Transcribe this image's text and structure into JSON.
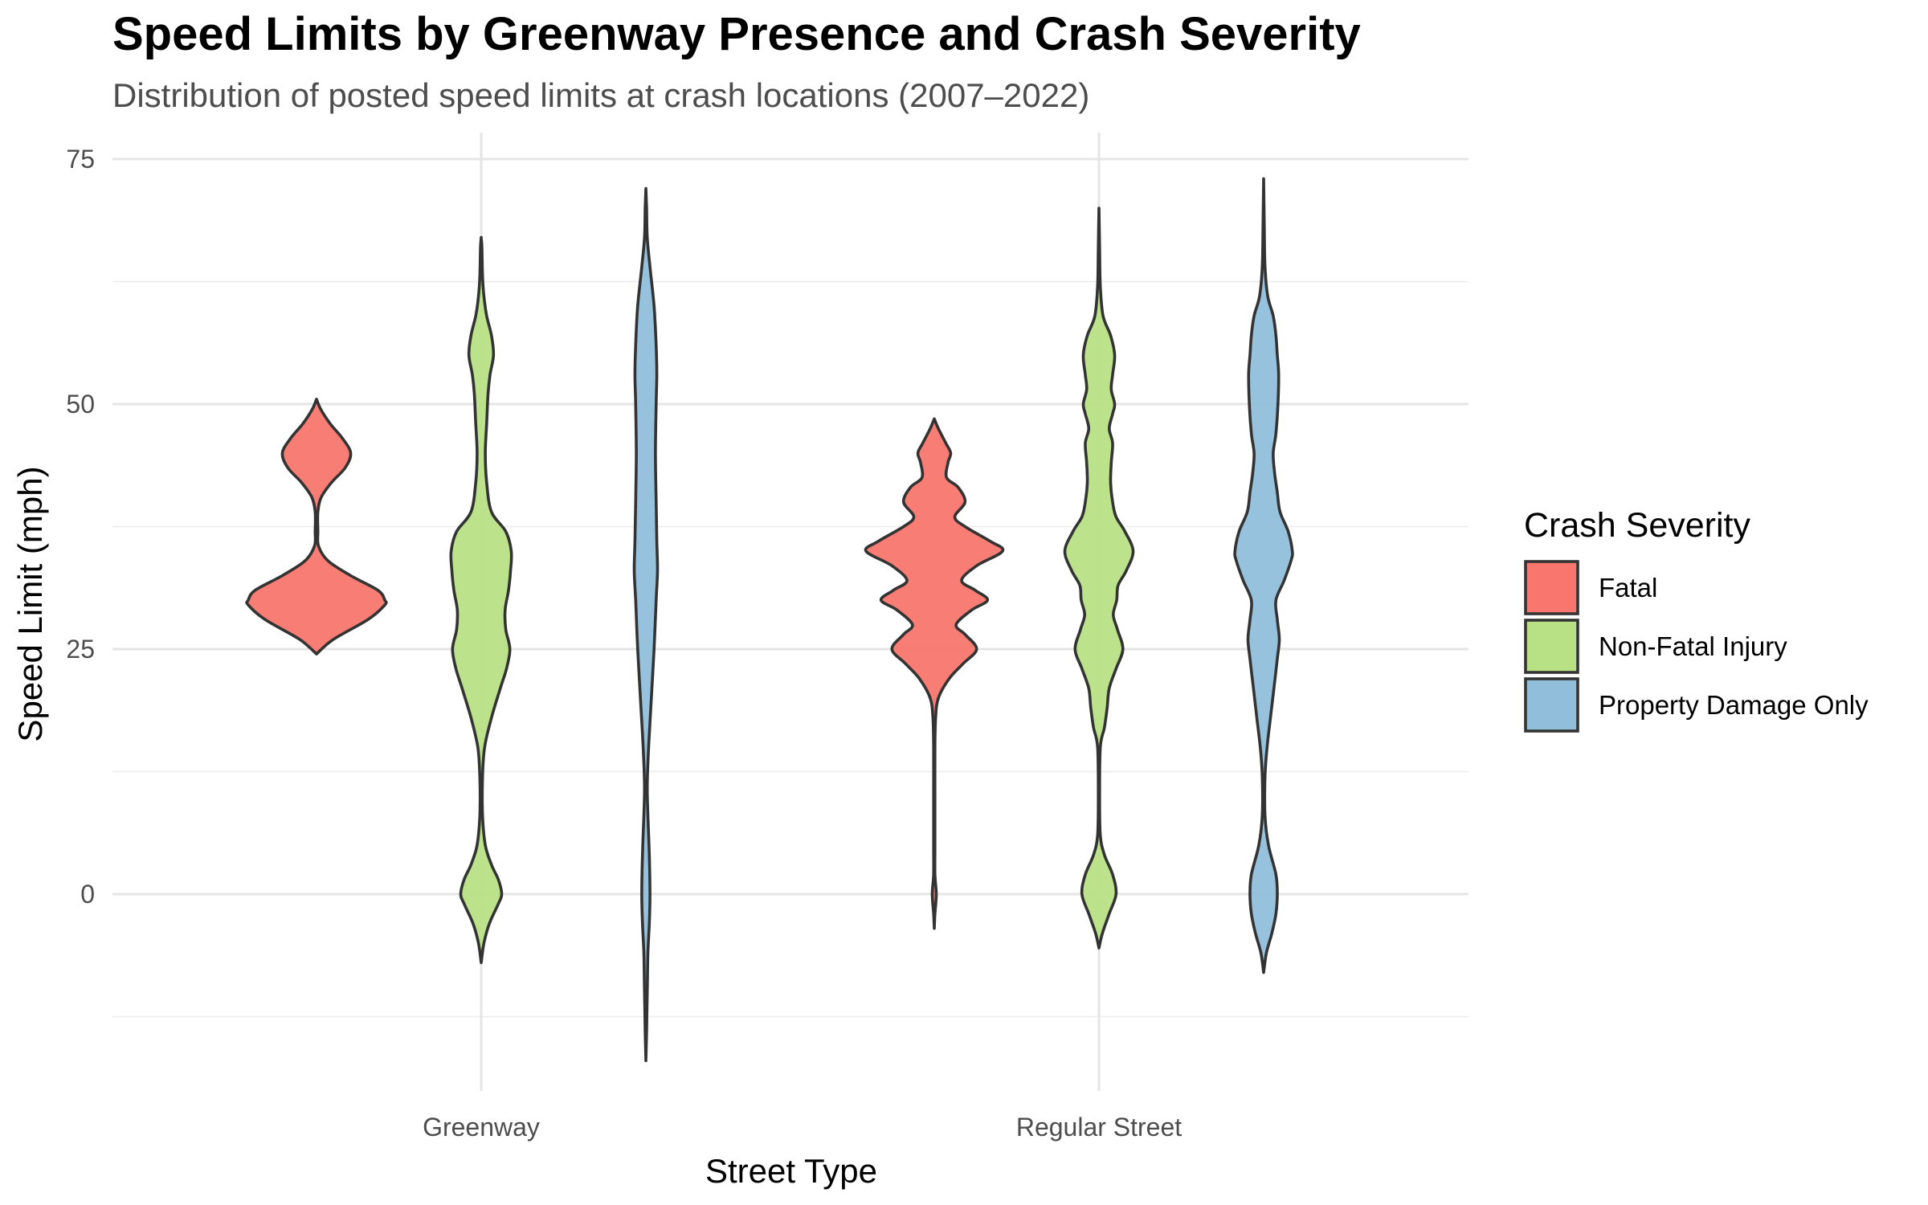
{
  "chart_data": {
    "type": "violin",
    "title": "Speed Limits by Greenway Presence and Crash Severity",
    "subtitle": "Distribution of posted speed limits at crash locations (2007–2022)",
    "xlabel": "Street Type",
    "ylabel": "Speed Limit (mph)",
    "categories": [
      "Greenway",
      "Regular Street"
    ],
    "ylim": [
      -18,
      77
    ],
    "yticks": [
      0,
      25,
      50,
      75
    ],
    "grid": true,
    "legend": {
      "title": "Crash Severity",
      "position": "right"
    },
    "series": [
      {
        "name": "Fatal",
        "color": "#F8766D",
        "violins": [
          {
            "category": "Greenway",
            "min": 24.5,
            "max": 50.5,
            "density": [
              [
                24.5,
                0
              ],
              [
                26,
                0.25
              ],
              [
                28,
                0.75
              ],
              [
                29.5,
                1.0
              ],
              [
                30,
                1.0
              ],
              [
                31,
                0.9
              ],
              [
                32.5,
                0.5
              ],
              [
                34,
                0.17
              ],
              [
                35.5,
                0.03
              ],
              [
                37,
                0.02
              ],
              [
                39,
                0.02
              ],
              [
                40.5,
                0.07
              ],
              [
                42,
                0.22
              ],
              [
                43.5,
                0.42
              ],
              [
                45,
                0.5
              ],
              [
                46.5,
                0.38
              ],
              [
                48,
                0.2
              ],
              [
                49.5,
                0.06
              ],
              [
                50.5,
                0
              ]
            ]
          },
          {
            "category": "Regular Street",
            "min": -3.5,
            "max": 48.5,
            "density": [
              [
                -3.5,
                0
              ],
              [
                -2,
                0.01
              ],
              [
                0,
                0.03
              ],
              [
                2,
                0.01
              ],
              [
                5,
                0.01
              ],
              [
                10,
                0.01
              ],
              [
                15,
                0.01
              ],
              [
                18,
                0.02
              ],
              [
                20,
                0.06
              ],
              [
                22,
                0.22
              ],
              [
                23.5,
                0.42
              ],
              [
                25,
                0.62
              ],
              [
                26.5,
                0.45
              ],
              [
                27.5,
                0.32
              ],
              [
                29,
                0.55
              ],
              [
                30,
                0.78
              ],
              [
                31,
                0.6
              ],
              [
                32,
                0.4
              ],
              [
                33.5,
                0.62
              ],
              [
                35,
                1.0
              ],
              [
                36,
                0.82
              ],
              [
                37.5,
                0.45
              ],
              [
                38.5,
                0.3
              ],
              [
                40,
                0.45
              ],
              [
                41.5,
                0.35
              ],
              [
                42.5,
                0.18
              ],
              [
                44,
                0.2
              ],
              [
                45,
                0.24
              ],
              [
                46,
                0.17
              ],
              [
                47.5,
                0.06
              ],
              [
                48.5,
                0
              ]
            ]
          }
        ]
      },
      {
        "name": "Non-Fatal Injury",
        "color": "#B8E186",
        "violins": [
          {
            "category": "Greenway",
            "min": -7,
            "max": 67,
            "density": [
              [
                -7,
                0
              ],
              [
                -5,
                0.04
              ],
              [
                -3,
                0.12
              ],
              [
                -1,
                0.25
              ],
              [
                0,
                0.3
              ],
              [
                1.5,
                0.25
              ],
              [
                3,
                0.15
              ],
              [
                5,
                0.06
              ],
              [
                8,
                0.02
              ],
              [
                12,
                0.02
              ],
              [
                15,
                0.05
              ],
              [
                18,
                0.15
              ],
              [
                21,
                0.28
              ],
              [
                23,
                0.37
              ],
              [
                25,
                0.42
              ],
              [
                27,
                0.36
              ],
              [
                29,
                0.35
              ],
              [
                31,
                0.4
              ],
              [
                33,
                0.43
              ],
              [
                35,
                0.44
              ],
              [
                37,
                0.36
              ],
              [
                39,
                0.15
              ],
              [
                42,
                0.08
              ],
              [
                45,
                0.06
              ],
              [
                48,
                0.08
              ],
              [
                51,
                0.1
              ],
              [
                53,
                0.13
              ],
              [
                55,
                0.18
              ],
              [
                57,
                0.15
              ],
              [
                59,
                0.08
              ],
              [
                61,
                0.04
              ],
              [
                63,
                0.02
              ],
              [
                66,
                0.01
              ],
              [
                67,
                0
              ]
            ]
          },
          {
            "category": "Regular Street",
            "min": -5.5,
            "max": 70,
            "density": [
              [
                -5.5,
                0
              ],
              [
                -4,
                0.05
              ],
              [
                -2,
                0.15
              ],
              [
                0,
                0.25
              ],
              [
                2,
                0.2
              ],
              [
                4,
                0.08
              ],
              [
                6,
                0.02
              ],
              [
                10,
                0.01
              ],
              [
                15,
                0.02
              ],
              [
                17,
                0.08
              ],
              [
                19,
                0.12
              ],
              [
                21,
                0.15
              ],
              [
                23,
                0.25
              ],
              [
                25,
                0.35
              ],
              [
                27,
                0.27
              ],
              [
                28.5,
                0.21
              ],
              [
                30,
                0.26
              ],
              [
                31.5,
                0.28
              ],
              [
                33,
                0.4
              ],
              [
                35,
                0.5
              ],
              [
                37,
                0.38
              ],
              [
                38.5,
                0.25
              ],
              [
                40,
                0.2
              ],
              [
                42,
                0.17
              ],
              [
                44,
                0.18
              ],
              [
                46,
                0.2
              ],
              [
                47.5,
                0.15
              ],
              [
                49,
                0.2
              ],
              [
                50,
                0.23
              ],
              [
                51.5,
                0.18
              ],
              [
                53,
                0.2
              ],
              [
                55,
                0.23
              ],
              [
                57,
                0.17
              ],
              [
                59,
                0.06
              ],
              [
                62,
                0.02
              ],
              [
                66,
                0.01
              ],
              [
                70,
                0
              ]
            ]
          }
        ]
      },
      {
        "name": "Property Damage Only",
        "color": "#91BFDB",
        "violins": [
          {
            "category": "Greenway",
            "min": -17,
            "max": 72,
            "density": [
              [
                -17,
                0
              ],
              [
                -14,
                0.01
              ],
              [
                -10,
                0.02
              ],
              [
                -6,
                0.03
              ],
              [
                -3,
                0.05
              ],
              [
                0,
                0.06
              ],
              [
                4,
                0.05
              ],
              [
                8,
                0.03
              ],
              [
                11,
                0.02
              ],
              [
                15,
                0.04
              ],
              [
                20,
                0.08
              ],
              [
                25,
                0.12
              ],
              [
                30,
                0.15
              ],
              [
                33,
                0.17
              ],
              [
                36,
                0.16
              ],
              [
                40,
                0.15
              ],
              [
                45,
                0.14
              ],
              [
                50,
                0.15
              ],
              [
                53,
                0.16
              ],
              [
                56,
                0.15
              ],
              [
                60,
                0.12
              ],
              [
                64,
                0.06
              ],
              [
                67,
                0.02
              ],
              [
                70,
                0.01
              ],
              [
                72,
                0
              ]
            ]
          },
          {
            "category": "Regular Street",
            "min": -8,
            "max": 73,
            "density": [
              [
                -8,
                0
              ],
              [
                -6,
                0.04
              ],
              [
                -4,
                0.12
              ],
              [
                -2,
                0.18
              ],
              [
                0,
                0.2
              ],
              [
                2,
                0.18
              ],
              [
                5,
                0.07
              ],
              [
                8,
                0.02
              ],
              [
                12,
                0.02
              ],
              [
                15,
                0.05
              ],
              [
                18,
                0.1
              ],
              [
                21,
                0.15
              ],
              [
                24,
                0.2
              ],
              [
                26,
                0.23
              ],
              [
                28,
                0.2
              ],
              [
                30,
                0.18
              ],
              [
                32,
                0.3
              ],
              [
                34,
                0.4
              ],
              [
                35,
                0.42
              ],
              [
                37,
                0.36
              ],
              [
                39,
                0.24
              ],
              [
                41,
                0.2
              ],
              [
                43,
                0.16
              ],
              [
                45,
                0.14
              ],
              [
                47,
                0.18
              ],
              [
                50,
                0.21
              ],
              [
                53,
                0.22
              ],
              [
                55,
                0.2
              ],
              [
                57,
                0.18
              ],
              [
                59,
                0.14
              ],
              [
                61,
                0.06
              ],
              [
                64,
                0.02
              ],
              [
                68,
                0.01
              ],
              [
                73,
                0
              ]
            ]
          }
        ]
      }
    ]
  }
}
